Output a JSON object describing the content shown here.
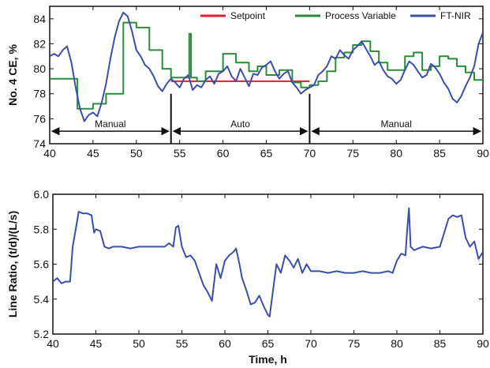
{
  "colors": {
    "setpoint": "#e0202a",
    "process_variable": "#2a8c3a",
    "ftnir": "#3a4fa8",
    "axes": "#111111",
    "annotation": "#111111"
  },
  "chart_data": [
    {
      "type": "line",
      "title": "",
      "xlabel": "",
      "ylabel": "No. 4 CE, %",
      "xlim": [
        40,
        90
      ],
      "ylim": [
        74,
        85
      ],
      "xticks": [
        40,
        45,
        50,
        55,
        60,
        65,
        70,
        75,
        80,
        85,
        90
      ],
      "yticks": [
        74,
        76,
        78,
        80,
        82,
        84
      ],
      "grid": false,
      "legend": {
        "position": "top-right",
        "items": [
          {
            "label": "Setpoint",
            "color_key": "setpoint"
          },
          {
            "label": "Process Variable",
            "color_key": "process_variable"
          },
          {
            "label": "FT-NIR",
            "color_key": "ftnir"
          }
        ]
      },
      "annotations": {
        "boundaries": [
          54,
          70
        ],
        "arrow_y": 75.0,
        "regions": [
          {
            "label": "Manual",
            "from": 40,
            "to": 54
          },
          {
            "label": "Auto",
            "from": 54,
            "to": 70
          },
          {
            "label": "Manual",
            "from": 70,
            "to": 90
          }
        ]
      },
      "series": [
        {
          "name": "Setpoint",
          "color_key": "setpoint",
          "step": true,
          "x": [
            54,
            70
          ],
          "y": [
            79.0,
            79.0
          ]
        },
        {
          "name": "Process Variable",
          "color_key": "process_variable",
          "step": true,
          "x": [
            40,
            42,
            43.2,
            45,
            46.5,
            48.5,
            50,
            51.5,
            53,
            54,
            56,
            56.1,
            56.3,
            57,
            58,
            60,
            61.5,
            63,
            64,
            65,
            66.5,
            68,
            69,
            70,
            71,
            72,
            73,
            74,
            75,
            76,
            77,
            78,
            79,
            80,
            81,
            82,
            83,
            84,
            85,
            86,
            87,
            88,
            89,
            90
          ],
          "y": [
            79.2,
            79.2,
            76.8,
            77.2,
            78.0,
            83.7,
            83.3,
            81.5,
            80.0,
            79.3,
            79.3,
            82.8,
            79.3,
            79.0,
            79.8,
            81.2,
            80.5,
            79.8,
            80.2,
            79.5,
            79.9,
            78.9,
            78.5,
            78.7,
            79.0,
            79.8,
            80.9,
            81.3,
            81.9,
            82.2,
            81.4,
            80.5,
            79.9,
            79.9,
            81.0,
            81.3,
            79.9,
            80.2,
            81.0,
            80.8,
            80.2,
            79.7,
            79.1,
            78.6
          ]
        },
        {
          "name": "FT-NIR",
          "color_key": "ftnir",
          "step": false,
          "x": [
            40,
            40.5,
            41,
            41.5,
            42,
            42.5,
            43,
            43.5,
            44,
            44.5,
            45,
            45.5,
            46,
            46.5,
            47,
            47.5,
            48,
            48.5,
            49,
            49.5,
            50,
            50.5,
            51,
            51.5,
            52,
            52.5,
            53,
            53.5,
            54,
            54.5,
            55,
            55.5,
            56,
            56.5,
            57,
            57.5,
            58,
            58.5,
            59,
            59.5,
            60,
            60.5,
            61,
            61.5,
            62,
            62.5,
            63,
            63.5,
            64,
            64.5,
            65,
            65.5,
            66,
            66.5,
            67,
            67.5,
            68,
            68.5,
            69,
            69.5,
            70,
            70.5,
            71,
            71.5,
            72,
            72.5,
            73,
            73.5,
            74,
            74.5,
            75,
            75.5,
            76,
            76.5,
            77,
            77.5,
            78,
            78.5,
            79,
            79.5,
            80,
            80.5,
            81,
            81.5,
            82,
            82.5,
            83,
            83.5,
            84,
            84.5,
            85,
            85.5,
            86,
            86.5,
            87,
            87.5,
            88,
            88.5,
            89,
            89.5,
            90
          ],
          "y": [
            81.0,
            81.2,
            81.0,
            81.5,
            81.8,
            80.5,
            78.5,
            76.8,
            75.8,
            76.3,
            76.5,
            76.2,
            77.3,
            78.8,
            80.8,
            82.5,
            83.8,
            84.5,
            84.2,
            83.0,
            81.5,
            81.0,
            80.3,
            80.0,
            79.4,
            78.6,
            78.2,
            78.8,
            79.2,
            78.9,
            78.5,
            79.2,
            79.5,
            78.3,
            78.7,
            78.5,
            79.1,
            79.4,
            78.8,
            79.6,
            79.8,
            80.2,
            79.4,
            79.0,
            80.0,
            79.3,
            78.6,
            79.6,
            79.5,
            80.1,
            80.3,
            80.6,
            79.8,
            79.2,
            79.6,
            79.8,
            78.9,
            78.5,
            78.0,
            78.3,
            78.5,
            78.7,
            79.5,
            79.8,
            80.2,
            81.0,
            80.8,
            81.5,
            81.1,
            80.8,
            81.5,
            81.8,
            82.2,
            81.6,
            81.0,
            80.3,
            80.6,
            79.9,
            79.4,
            79.2,
            78.8,
            79.1,
            79.9,
            80.6,
            80.3,
            79.8,
            79.3,
            79.5,
            80.4,
            80.1,
            79.6,
            78.9,
            78.4,
            77.6,
            77.3,
            77.8,
            78.6,
            79.3,
            80.2,
            82.0,
            82.9
          ]
        }
      ]
    },
    {
      "type": "line",
      "title": "",
      "xlabel": "Time, h",
      "ylabel": "Line Ratio, (t/d)/(L/s)",
      "xlim": [
        40,
        90
      ],
      "ylim": [
        5.2,
        6.0
      ],
      "xticks": [
        40,
        45,
        50,
        55,
        60,
        65,
        70,
        75,
        80,
        85,
        90
      ],
      "yticks": [
        5.2,
        5.4,
        5.6,
        5.8,
        6.0
      ],
      "grid": false,
      "series": [
        {
          "name": "",
          "color_key": "ftnir",
          "step": false,
          "x": [
            40,
            40.5,
            41,
            41.5,
            42,
            42.3,
            42.8,
            43,
            43.5,
            44,
            44.5,
            44.8,
            45,
            45.5,
            46,
            46.5,
            47,
            48,
            49,
            50,
            51,
            52,
            53,
            53.5,
            54,
            54.3,
            54.6,
            55,
            55.5,
            56,
            56.5,
            57,
            57.5,
            58,
            58.5,
            59,
            59.5,
            60,
            60.5,
            61,
            61.3,
            61.7,
            62,
            62.5,
            63,
            63.5,
            64,
            64.5,
            65,
            65.2,
            65.6,
            66,
            66.5,
            67,
            67.5,
            68,
            68.5,
            69,
            69.5,
            70,
            71,
            72,
            73,
            74,
            75,
            76,
            77,
            78,
            79,
            79.5,
            80,
            80.5,
            81,
            81.2,
            81.4,
            81.6,
            82,
            82.5,
            83,
            84,
            85,
            85.5,
            86,
            86.5,
            87,
            87.5,
            88,
            88.5,
            89,
            89.5,
            90
          ],
          "y": [
            5.5,
            5.52,
            5.49,
            5.5,
            5.5,
            5.7,
            5.84,
            5.9,
            5.89,
            5.89,
            5.88,
            5.78,
            5.8,
            5.79,
            5.7,
            5.69,
            5.7,
            5.7,
            5.69,
            5.7,
            5.7,
            5.7,
            5.7,
            5.72,
            5.7,
            5.81,
            5.82,
            5.7,
            5.64,
            5.65,
            5.62,
            5.55,
            5.48,
            5.44,
            5.39,
            5.6,
            5.52,
            5.62,
            5.65,
            5.67,
            5.69,
            5.6,
            5.52,
            5.45,
            5.37,
            5.38,
            5.42,
            5.36,
            5.31,
            5.3,
            5.45,
            5.6,
            5.55,
            5.65,
            5.62,
            5.58,
            5.63,
            5.55,
            5.6,
            5.56,
            5.56,
            5.55,
            5.56,
            5.55,
            5.55,
            5.56,
            5.55,
            5.55,
            5.56,
            5.55,
            5.62,
            5.66,
            5.65,
            5.8,
            5.92,
            5.7,
            5.68,
            5.69,
            5.7,
            5.69,
            5.7,
            5.78,
            5.86,
            5.88,
            5.87,
            5.88,
            5.75,
            5.7,
            5.73,
            5.63,
            5.67
          ]
        }
      ]
    }
  ]
}
